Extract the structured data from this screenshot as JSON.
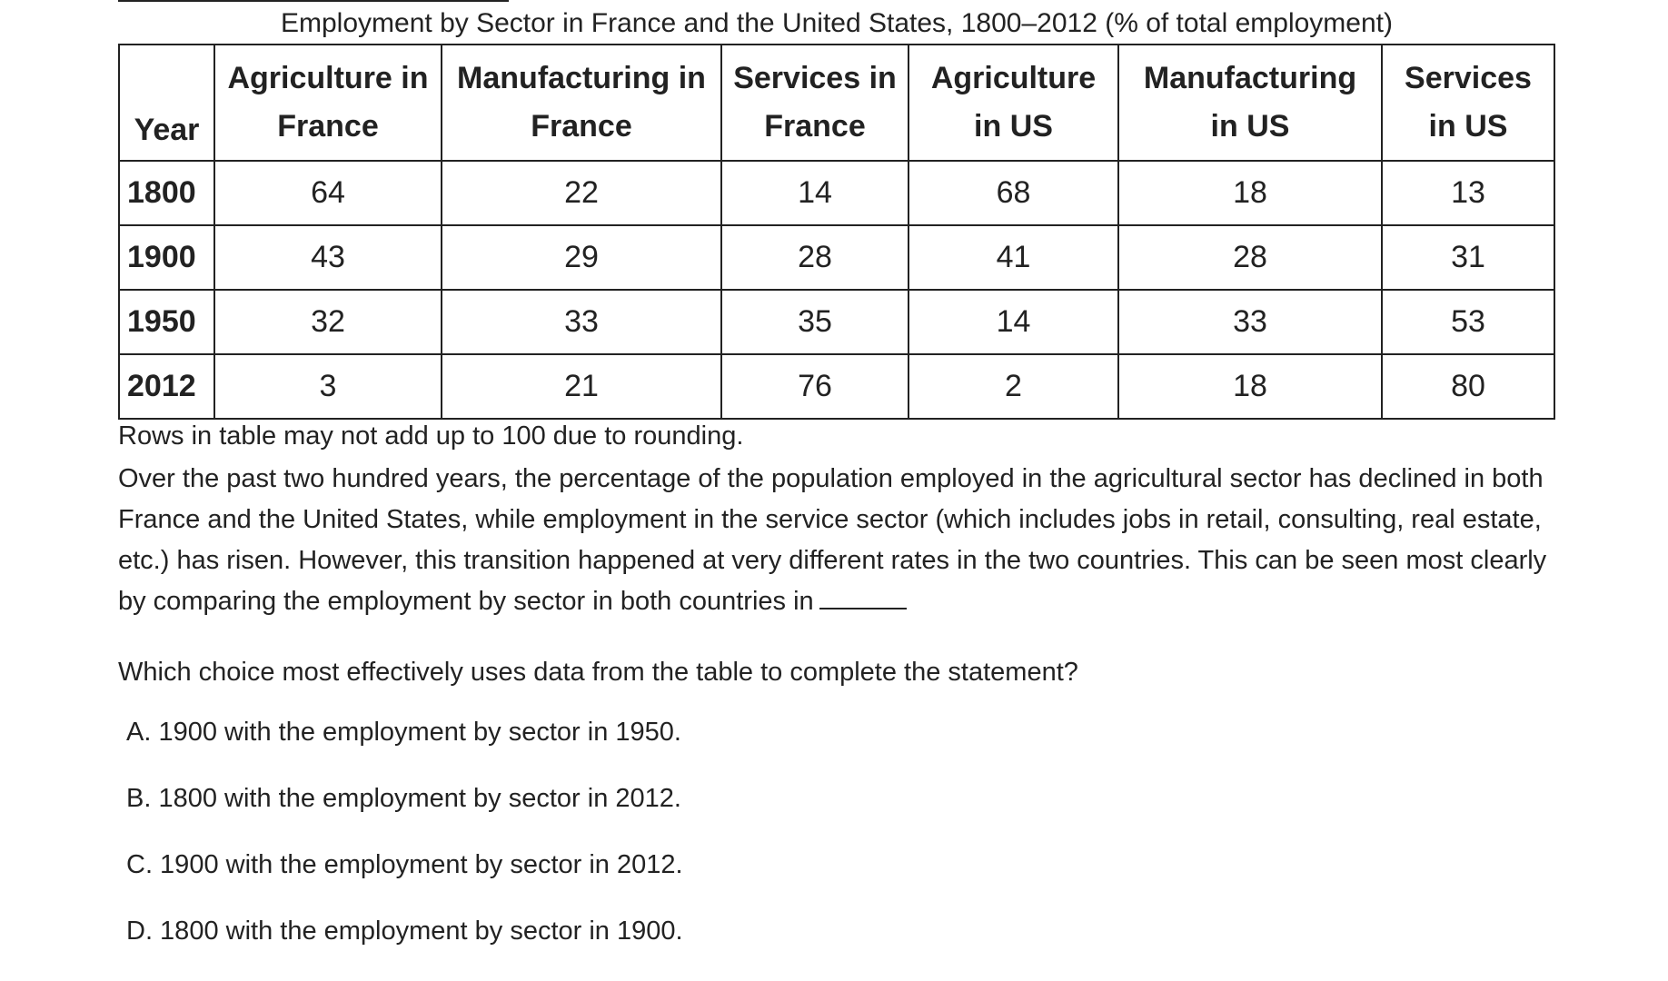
{
  "table": {
    "title": "Employment by Sector in France and the United States, 1800–2012 (% of total employment)",
    "headers": [
      {
        "line1": "",
        "line2": "Year"
      },
      {
        "line1": "Agriculture in",
        "line2": "France"
      },
      {
        "line1": "Manufacturing in",
        "line2": "France"
      },
      {
        "line1": "Services in",
        "line2": "France"
      },
      {
        "line1": "Agriculture",
        "line2": "in US"
      },
      {
        "line1": "Manufacturing",
        "line2": "in US"
      },
      {
        "line1": "Services",
        "line2": "in US"
      }
    ],
    "rows": [
      [
        "1800",
        "64",
        "22",
        "14",
        "68",
        "18",
        "13"
      ],
      [
        "1900",
        "43",
        "29",
        "28",
        "41",
        "28",
        "31"
      ],
      [
        "1950",
        "32",
        "33",
        "35",
        "14",
        "33",
        "53"
      ],
      [
        "2012",
        "3",
        "21",
        "76",
        "2",
        "18",
        "80"
      ]
    ],
    "footnote": "Rows in table may not add up to 100 due to rounding."
  },
  "passage": "Over the past two hundred years, the percentage of the population employed in the agricultural sector has declined in both France and the United States, while employment in the service sector (which includes jobs in retail, consulting, real estate, etc.) has risen. However, this transition happened at very different rates in the two countries. This can be seen most clearly by comparing the employment by sector in both countries in",
  "question": "Which choice most effectively uses data from the table to complete the statement?",
  "choices": [
    "A. 1900 with the employment by sector in 1950.",
    "B. 1800 with the employment by sector in 2012.",
    "C. 1900 with the employment by sector in 2012.",
    "D. 1800 with the employment by sector in 1900."
  ]
}
